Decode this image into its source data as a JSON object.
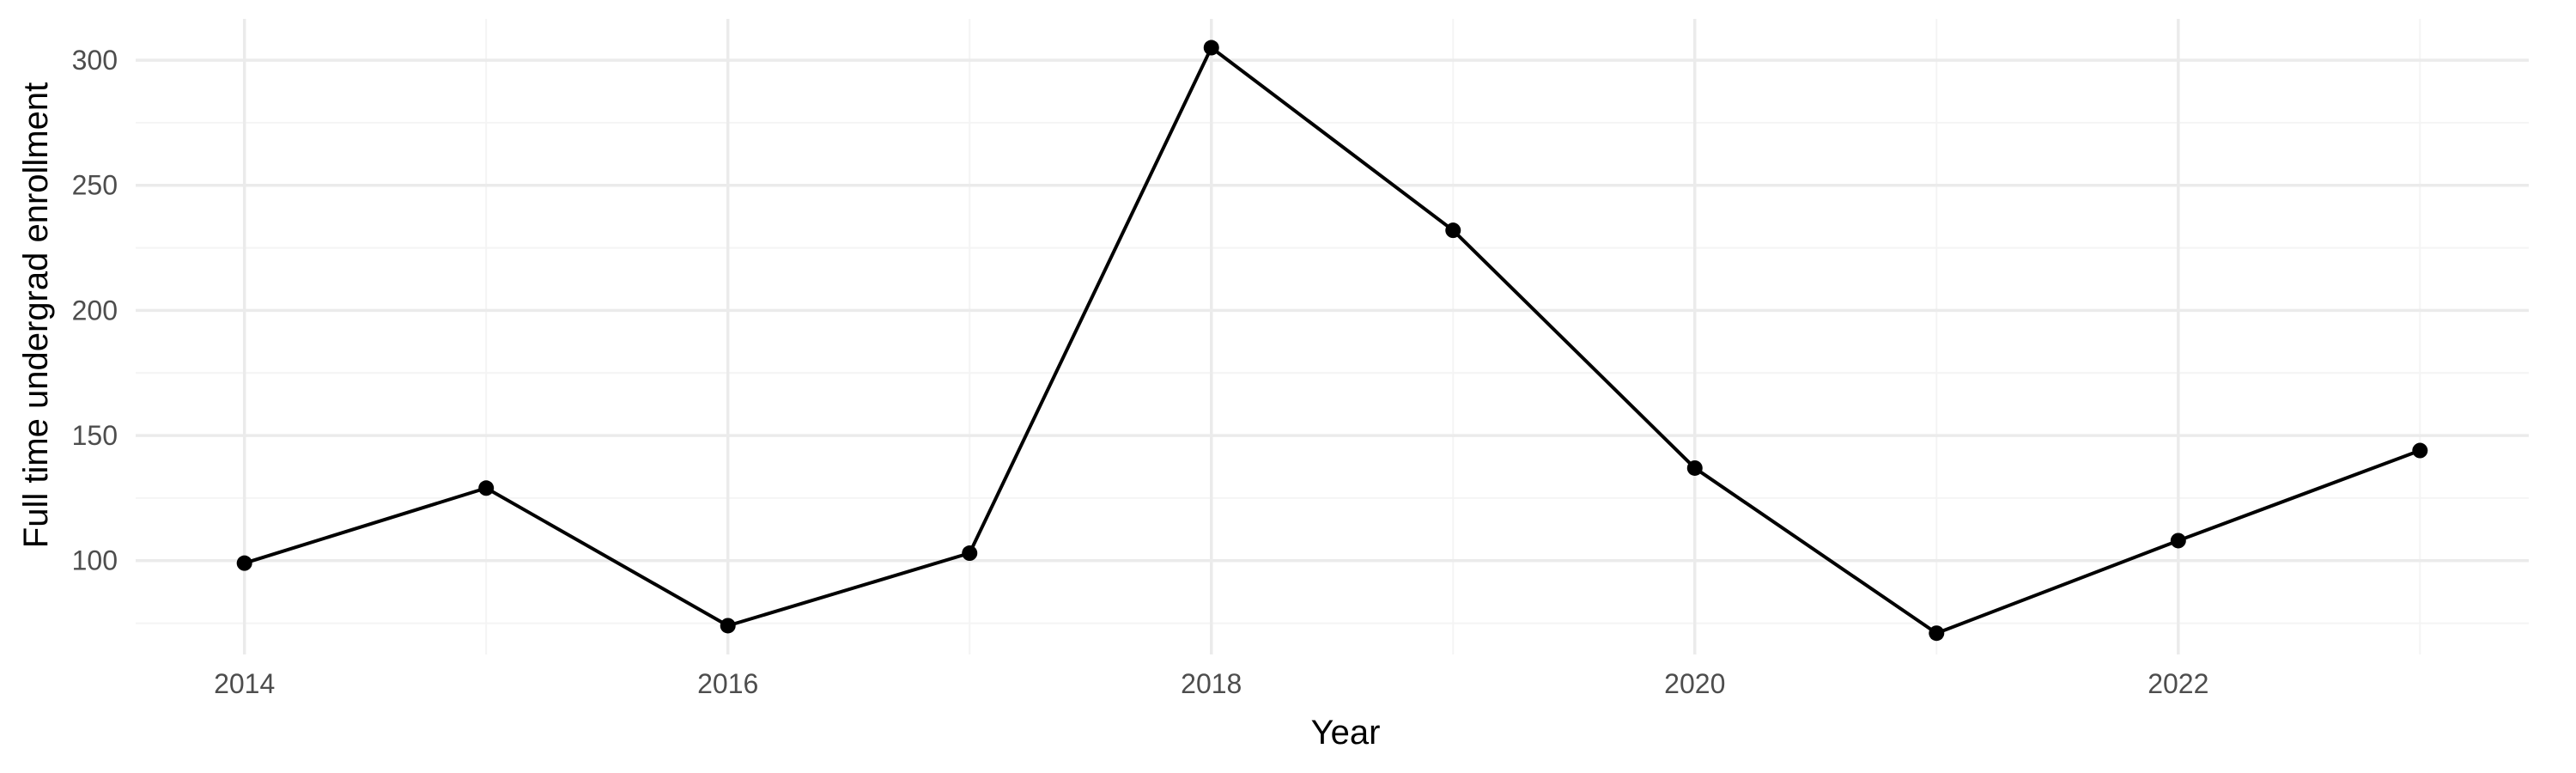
{
  "chart_data": {
    "type": "line",
    "title": "",
    "xlabel": "Year",
    "ylabel": "Full time undergrad enrollment",
    "x": [
      2014,
      2015,
      2016,
      2017,
      2018,
      2019,
      2020,
      2021,
      2022,
      2023
    ],
    "series": [
      {
        "values": [
          99,
          129,
          74,
          103,
          305,
          232,
          137,
          71,
          108,
          144
        ]
      }
    ],
    "xlim": [
      2013.55,
      2023.45
    ],
    "ylim": [
      62.5,
      316.5
    ],
    "x_ticks": [
      2014,
      2016,
      2018,
      2020,
      2022
    ],
    "x_tick_labels": [
      "2014",
      "2016",
      "2018",
      "2020",
      "2022"
    ],
    "y_ticks": [
      100,
      150,
      200,
      250,
      300
    ],
    "y_tick_labels": [
      "100",
      "150",
      "200",
      "250",
      "300"
    ],
    "grid": true,
    "legend": "none",
    "colors": {
      "line": "#000000",
      "points": "#000000",
      "grid_major": "#ebebeb",
      "grid_minor": "#f4f4f4",
      "tick_text": "#4d4d4d",
      "background": "#ffffff"
    }
  }
}
